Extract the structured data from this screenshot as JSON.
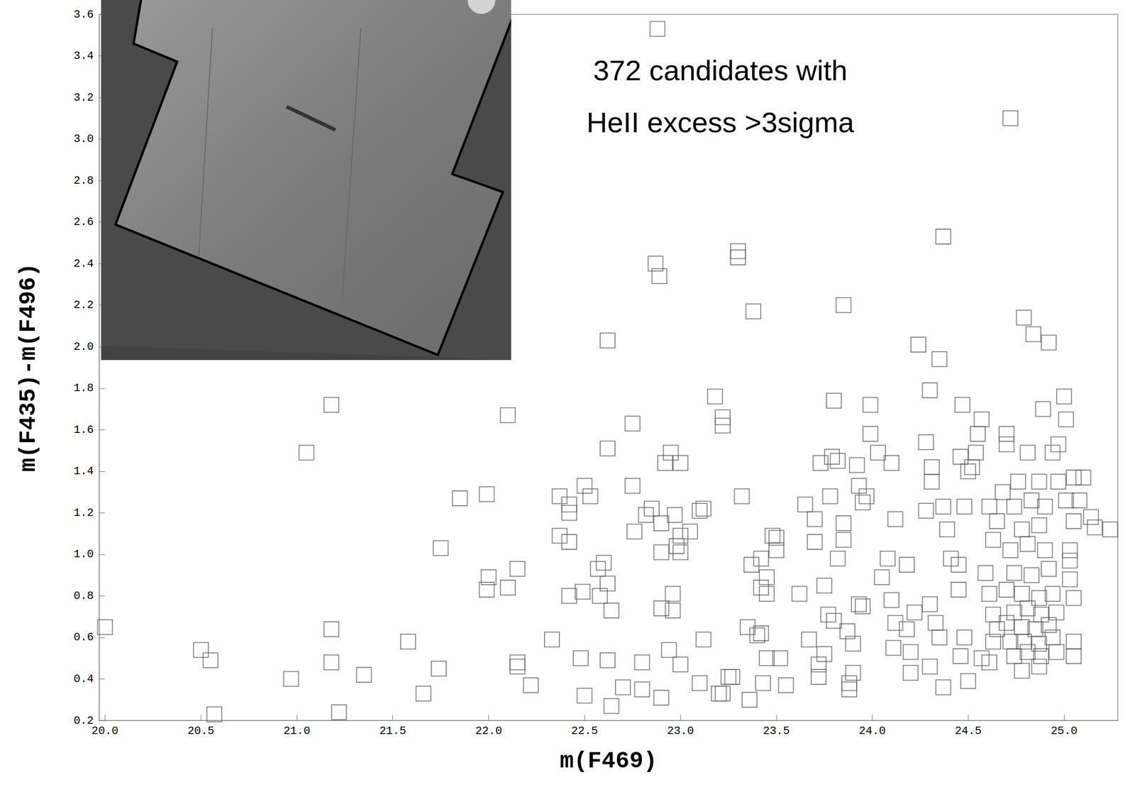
{
  "chart_data": {
    "type": "scatter",
    "annotation": [
      "372 candidates with",
      "HeII excess >3sigma"
    ],
    "x_label": "m(F469)",
    "y_label": "m(F435)-m(F496)",
    "color": "#555555",
    "marker": "open_square",
    "grid": false,
    "xlim": [
      19.97,
      25.28
    ],
    "ylim": [
      0.2,
      3.6
    ],
    "xticks": [
      {
        "value": 20,
        "label": "20.0"
      },
      20.5,
      {
        "value": 21,
        "label": "21.0"
      },
      21.5,
      {
        "value": 22,
        "label": "22.0"
      },
      22.5,
      {
        "value": 23,
        "label": "23.0"
      },
      23.5,
      {
        "value": 24,
        "label": "24.0"
      },
      24.5,
      {
        "value": 25,
        "label": "25.0"
      }
    ],
    "yticks": [
      0.2,
      0.4,
      0.6,
      0.8,
      {
        "value": 1,
        "label": "1.0"
      },
      1.2,
      1.4,
      1.6,
      1.8,
      {
        "value": 2,
        "label": "2.0"
      },
      2.2,
      2.4,
      2.6,
      2.8,
      {
        "value": 3,
        "label": "3.0"
      },
      3.2,
      3.4,
      3.6
    ],
    "x": [
      20.0,
      20.5,
      20.55,
      20.57,
      20.97,
      21.05,
      21.18,
      21.18,
      21.18,
      21.22,
      21.35,
      21.58,
      21.66,
      21.74,
      21.75,
      21.85,
      21.99,
      22.0,
      21.99,
      22.1,
      22.1,
      22.15,
      22.15,
      22.15,
      22.22,
      22.33,
      22.37,
      22.37,
      22.42,
      22.42,
      22.42,
      22.42,
      22.48,
      22.5,
      22.53,
      22.49,
      22.5,
      22.57,
      22.6,
      22.58,
      22.62,
      22.62,
      22.62,
      22.62,
      22.64,
      22.64,
      22.7,
      22.75,
      22.76,
      22.75,
      22.8,
      22.8,
      22.82,
      22.85,
      22.87,
      22.89,
      22.88,
      22.9,
      22.9,
      22.9,
      22.9,
      22.92,
      22.94,
      22.95,
      22.96,
      22.96,
      22.97,
      22.98,
      23.0,
      23.0,
      23.0,
      23.0,
      23.05,
      23.1,
      23.12,
      23.12,
      23.1,
      23.18,
      23.2,
      23.22,
      23.22,
      23.22,
      23.25,
      23.27,
      23.3,
      23.3,
      23.32,
      23.35,
      23.36,
      23.37,
      23.38,
      23.4,
      23.42,
      23.42,
      23.42,
      23.45,
      23.45,
      23.45,
      23.43,
      23.48,
      23.5,
      23.5,
      23.52,
      23.55,
      23.62,
      23.65,
      23.67,
      23.7,
      23.7,
      23.73,
      23.72,
      23.72,
      23.75,
      23.75,
      23.77,
      23.78,
      23.79,
      23.8,
      23.8,
      23.82,
      23.82,
      23.85,
      23.85,
      23.85,
      23.87,
      23.88,
      23.88,
      23.9,
      23.9,
      23.92,
      23.93,
      23.95,
      23.95,
      23.97,
      23.93,
      24.03,
      23.99,
      23.99,
      24.1,
      24.12,
      24.08,
      24.05,
      24.1,
      24.12,
      24.11,
      24.18,
      24.22,
      24.18,
      24.2,
      24.2,
      24.24,
      24.31,
      24.31,
      24.28,
      24.3,
      24.35,
      24.37,
      24.28,
      24.37,
      24.39,
      24.3,
      24.33,
      24.35,
      24.3,
      24.37,
      24.41,
      24.45,
      24.45,
      24.47,
      24.46,
      24.5,
      24.52,
      24.54,
      24.55,
      24.57,
      24.48,
      24.61,
      24.65,
      24.63,
      24.59,
      24.61,
      24.63,
      24.65,
      24.63,
      24.57,
      24.61,
      24.5,
      24.48,
      24.46,
      24.7,
      24.7,
      24.68,
      24.72,
      24.79,
      24.84,
      24.92,
      24.89,
      25.0,
      25.01,
      24.97,
      24.94,
      24.81,
      24.76,
      24.87,
      24.97,
      25.05,
      24.74,
      24.83,
      24.9,
      25.01,
      24.78,
      24.87,
      25.05,
      24.72,
      24.81,
      24.9,
      25.03,
      25.03,
      24.74,
      24.83,
      24.92,
      25.03,
      24.7,
      24.78,
      24.87,
      24.94,
      25.05,
      24.74,
      24.81,
      24.88,
      24.96,
      24.7,
      24.78,
      24.85,
      24.92,
      24.72,
      24.79,
      24.87,
      24.94,
      25.05,
      24.74,
      24.81,
      24.88,
      24.96,
      25.05,
      24.78,
      24.87,
      25.14,
      25.08,
      25.1,
      25.16,
      25.24
    ],
    "y": [
      0.65,
      0.54,
      0.49,
      0.23,
      0.4,
      1.49,
      1.72,
      0.64,
      0.48,
      0.24,
      0.42,
      0.58,
      0.33,
      0.45,
      1.03,
      1.27,
      1.29,
      0.89,
      0.83,
      1.67,
      0.84,
      0.93,
      0.48,
      0.46,
      0.37,
      0.59,
      1.28,
      1.09,
      1.24,
      1.2,
      1.06,
      0.8,
      0.5,
      1.33,
      1.28,
      0.82,
      0.32,
      0.93,
      0.96,
      0.8,
      0.86,
      1.51,
      2.03,
      0.49,
      0.73,
      0.27,
      0.36,
      1.33,
      1.11,
      1.63,
      0.48,
      0.35,
      1.19,
      1.22,
      2.4,
      2.34,
      3.53,
      1.15,
      1.01,
      0.74,
      0.31,
      1.44,
      0.54,
      1.49,
      0.81,
      0.73,
      1.19,
      1.04,
      1.01,
      1.09,
      0.47,
      1.44,
      1.11,
      1.21,
      1.22,
      0.59,
      0.38,
      1.76,
      0.33,
      1.66,
      1.62,
      0.33,
      0.41,
      0.41,
      2.46,
      2.43,
      1.28,
      0.65,
      0.3,
      0.95,
      2.17,
      0.61,
      0.62,
      0.98,
      0.84,
      0.89,
      0.81,
      0.5,
      0.38,
      1.09,
      1.08,
      1.02,
      0.5,
      0.37,
      0.81,
      1.24,
      0.59,
      1.17,
      1.06,
      1.44,
      0.41,
      0.47,
      0.85,
      0.52,
      0.71,
      1.28,
      1.47,
      0.68,
      1.74,
      1.45,
      0.98,
      2.2,
      1.15,
      1.07,
      0.63,
      0.35,
      0.38,
      0.57,
      0.43,
      1.43,
      1.33,
      0.75,
      1.25,
      1.28,
      0.76,
      1.49,
      1.72,
      1.58,
      1.44,
      1.17,
      0.98,
      0.89,
      0.78,
      0.67,
      0.55,
      0.95,
      0.72,
      0.64,
      0.53,
      0.43,
      2.01,
      1.42,
      1.35,
      1.54,
      1.79,
      1.94,
      2.53,
      1.21,
      1.23,
      1.12,
      0.76,
      0.67,
      0.6,
      0.46,
      0.36,
      0.98,
      0.95,
      0.83,
      1.72,
      1.47,
      1.4,
      1.42,
      1.49,
      1.58,
      1.65,
      1.23,
      1.23,
      1.16,
      1.07,
      0.91,
      0.81,
      0.71,
      0.64,
      0.58,
      0.5,
      0.48,
      0.39,
      0.6,
      0.51,
      1.58,
      1.53,
      1.3,
      3.1,
      2.14,
      2.06,
      2.02,
      1.7,
      1.76,
      1.65,
      1.53,
      1.49,
      1.49,
      1.35,
      1.35,
      1.35,
      1.37,
      1.23,
      1.26,
      1.23,
      1.26,
      1.12,
      1.14,
      1.16,
      1.02,
      1.05,
      1.02,
      1.02,
      0.97,
      0.91,
      0.9,
      0.93,
      0.88,
      0.83,
      0.81,
      0.79,
      0.81,
      0.79,
      0.72,
      0.74,
      0.71,
      0.72,
      0.67,
      0.65,
      0.64,
      0.66,
      0.58,
      0.58,
      0.57,
      0.6,
      0.58,
      0.51,
      0.53,
      0.51,
      0.53,
      0.51,
      0.44,
      0.46,
      1.18,
      1.26,
      1.37,
      1.13,
      1.12
    ]
  }
}
